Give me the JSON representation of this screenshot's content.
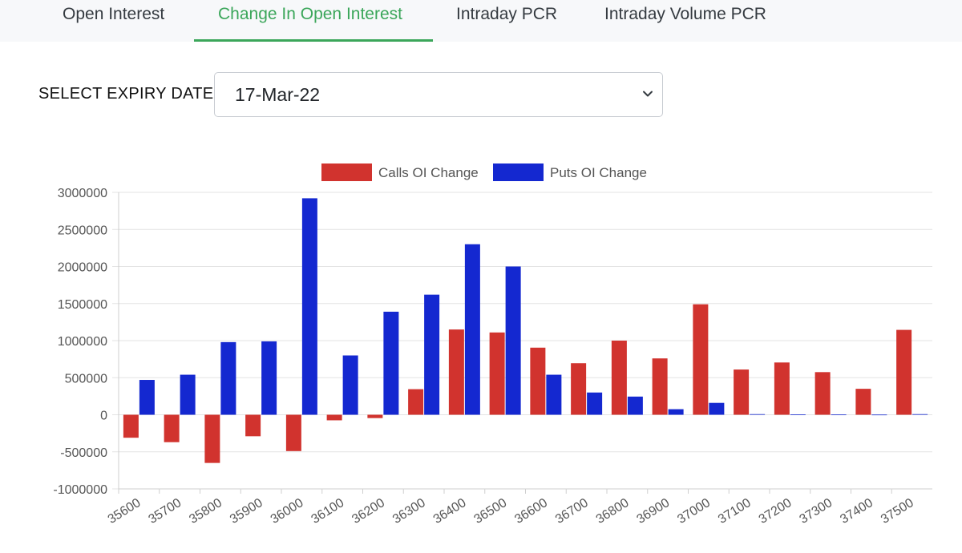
{
  "tabs": [
    {
      "label": "Open Interest",
      "active": false
    },
    {
      "label": "Change In Open Interest",
      "active": true
    },
    {
      "label": "Intraday PCR",
      "active": false
    },
    {
      "label": "Intraday Volume PCR",
      "active": false
    }
  ],
  "expiry": {
    "label": "SELECT EXPIRY DATE:",
    "selected": "17-Mar-22"
  },
  "colors": {
    "accent": "#3ba65a",
    "calls": "#d1332e",
    "puts": "#1428d0"
  },
  "chart_data": {
    "type": "bar",
    "title": "",
    "xlabel": "",
    "ylabel": "",
    "categories": [
      "35600",
      "35700",
      "35800",
      "35900",
      "36000",
      "36100",
      "36200",
      "36300",
      "36400",
      "36500",
      "36600",
      "36700",
      "36800",
      "36900",
      "37000",
      "37100",
      "37200",
      "37300",
      "37400",
      "37500"
    ],
    "series": [
      {
        "name": "Calls OI Change",
        "color": "#d1332e",
        "values": [
          -310000,
          -370000,
          -650000,
          -290000,
          -490000,
          -75000,
          -45000,
          345000,
          1150000,
          1110000,
          905000,
          695000,
          1000000,
          760000,
          1490000,
          610000,
          705000,
          575000,
          350000,
          1145000
        ]
      },
      {
        "name": "Puts OI Change",
        "color": "#1428d0",
        "values": [
          470000,
          540000,
          980000,
          990000,
          2920000,
          800000,
          1390000,
          1620000,
          2300000,
          2000000,
          540000,
          300000,
          245000,
          75000,
          160000,
          8000,
          5000,
          3000,
          2000,
          8000
        ]
      }
    ],
    "ylim": [
      -1000000,
      3000000
    ],
    "yticks": [
      "3000000",
      "2500000",
      "2000000",
      "1500000",
      "1000000",
      "500000",
      "0",
      "-500000",
      "-1000000"
    ],
    "grid": true,
    "legend_position": "top-center"
  }
}
